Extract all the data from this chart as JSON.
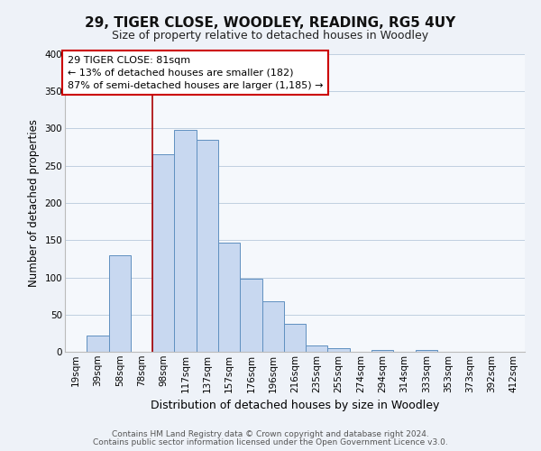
{
  "title": "29, TIGER CLOSE, WOODLEY, READING, RG5 4UY",
  "subtitle": "Size of property relative to detached houses in Woodley",
  "xlabel": "Distribution of detached houses by size in Woodley",
  "ylabel": "Number of detached properties",
  "bar_labels": [
    "19sqm",
    "39sqm",
    "58sqm",
    "78sqm",
    "98sqm",
    "117sqm",
    "137sqm",
    "157sqm",
    "176sqm",
    "196sqm",
    "216sqm",
    "235sqm",
    "255sqm",
    "274sqm",
    "294sqm",
    "314sqm",
    "333sqm",
    "353sqm",
    "373sqm",
    "392sqm",
    "412sqm"
  ],
  "bar_values": [
    0,
    22,
    130,
    0,
    265,
    298,
    285,
    147,
    98,
    68,
    37,
    8,
    5,
    0,
    3,
    0,
    2,
    0,
    0,
    0,
    0
  ],
  "bar_color": "#c8d8f0",
  "bar_edge_color": "#6090c0",
  "vline_x": 3.5,
  "vline_color": "#aa0000",
  "ylim": [
    0,
    400
  ],
  "yticks": [
    0,
    50,
    100,
    150,
    200,
    250,
    300,
    350,
    400
  ],
  "annotation_line1": "29 TIGER CLOSE: 81sqm",
  "annotation_line2": "← 13% of detached houses are smaller (182)",
  "annotation_line3": "87% of semi-detached houses are larger (1,185) →",
  "footer_line1": "Contains HM Land Registry data © Crown copyright and database right 2024.",
  "footer_line2": "Contains public sector information licensed under the Open Government Licence v3.0.",
  "bg_color": "#eef2f8",
  "plot_bg_color": "#f5f8fc",
  "grid_color": "#c0cfe0",
  "title_fontsize": 11,
  "subtitle_fontsize": 9,
  "tick_fontsize": 7.5,
  "ylabel_fontsize": 8.5,
  "xlabel_fontsize": 9
}
